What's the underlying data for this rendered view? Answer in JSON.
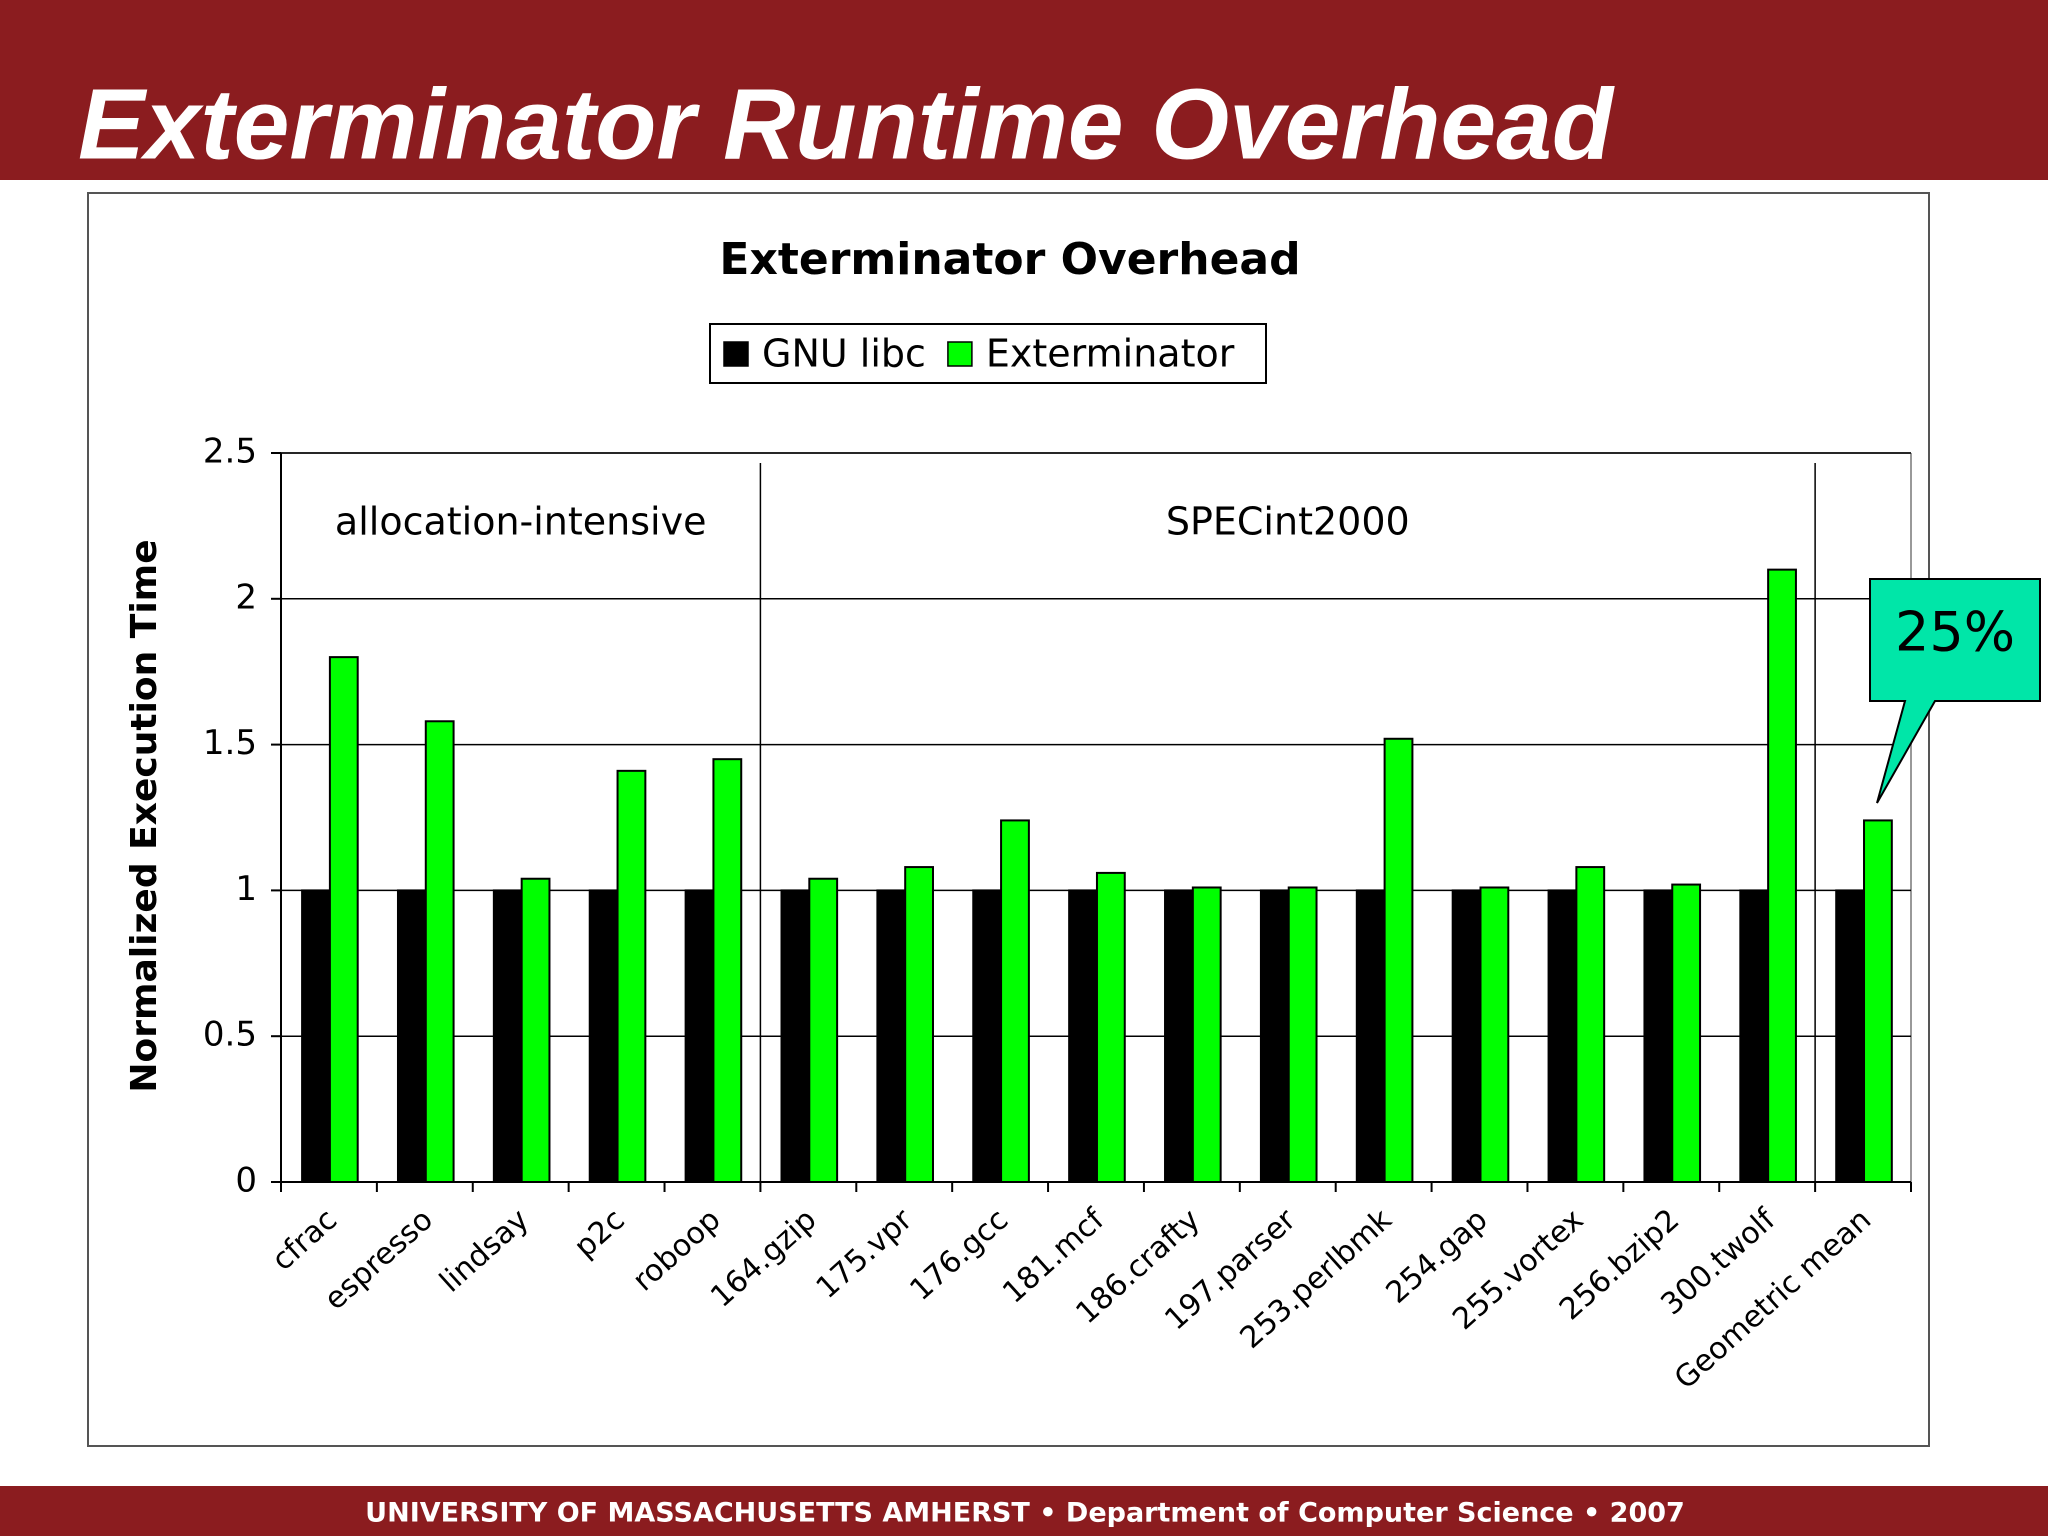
{
  "slide": {
    "title": "Exterminator Runtime Overhead",
    "footer": "UNIVERSITY OF MASSACHUSETTS AMHERST • Department of Computer Science • 2007"
  },
  "chart_data": {
    "type": "bar",
    "title": "Exterminator Overhead",
    "y_label": "Normalized Execution Time",
    "categories": [
      "cfrac",
      "espresso",
      "lindsay",
      "p2c",
      "roboop",
      "164.gzip",
      "175.vpr",
      "176.gcc",
      "181.mcf",
      "186.crafty",
      "197.parser",
      "253.perlbmk",
      "254.gap",
      "255.vortex",
      "256.bzip2",
      "300.twolf",
      "Geometric mean"
    ],
    "series": [
      {
        "name": "GNU libc",
        "color": "#000000",
        "values": [
          1,
          1,
          1,
          1,
          1,
          1,
          1,
          1,
          1,
          1,
          1,
          1,
          1,
          1,
          1,
          1,
          1
        ]
      },
      {
        "name": "Exterminator",
        "color": "#00ff00",
        "values": [
          1.8,
          1.58,
          1.04,
          1.41,
          1.45,
          1.04,
          1.08,
          1.24,
          1.06,
          1.01,
          1.01,
          1.52,
          1.01,
          1.08,
          1.02,
          2.1,
          1.24
        ]
      }
    ],
    "ylim": [
      0,
      2.5
    ],
    "yticks": [
      0,
      0.5,
      1,
      1.5,
      2,
      2.5
    ],
    "grid": true,
    "legend": "top",
    "annotations": [
      {
        "text": "allocation-intensive"
      },
      {
        "text": "SPECint2000"
      }
    ],
    "callout": {
      "text": "25%",
      "color": "#00e6a8"
    }
  }
}
